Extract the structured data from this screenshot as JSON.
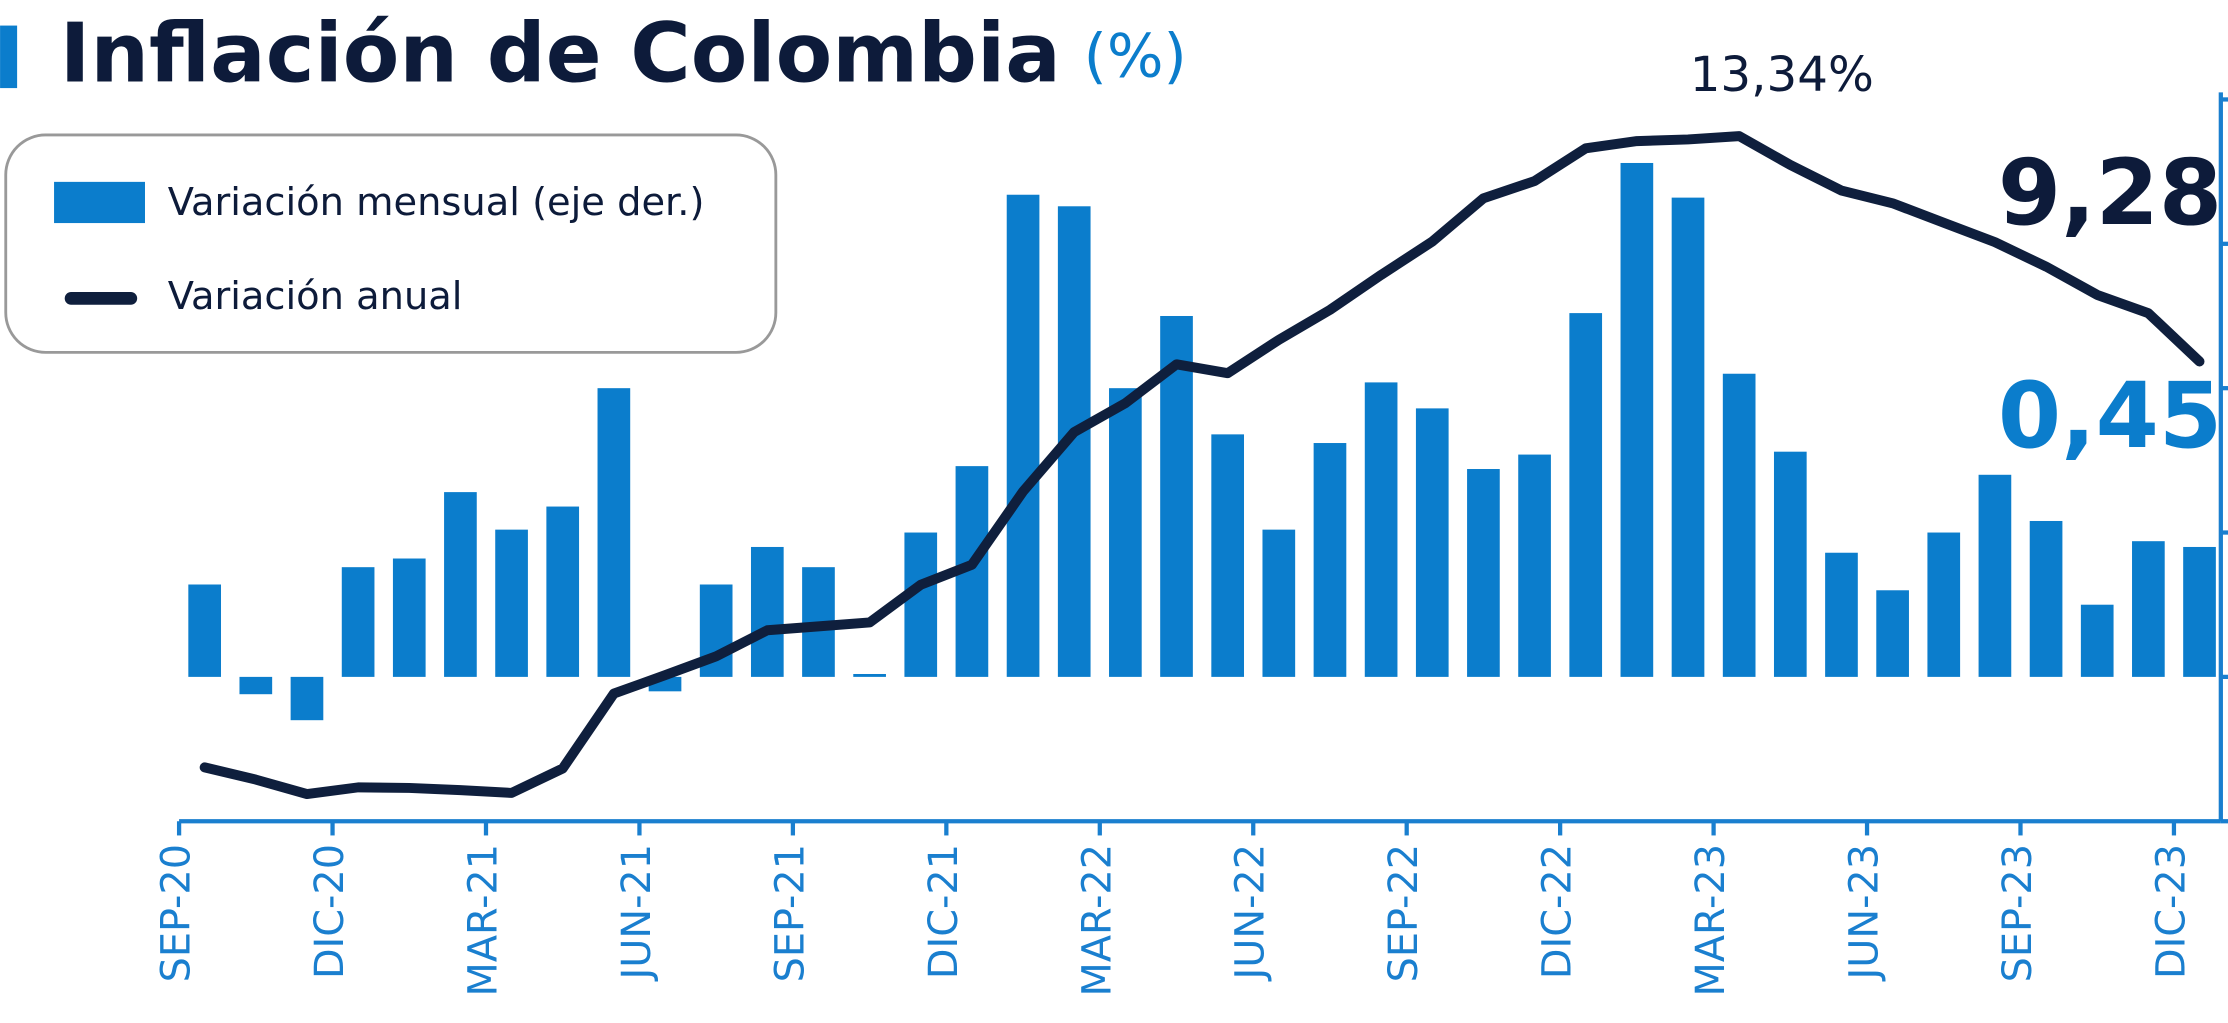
{
  "chart_data": {
    "type": "bar",
    "title": "Inflación de Colombia",
    "title_unit": "(%)",
    "categories": [
      "SEP-20",
      null,
      null,
      "DIC-20",
      null,
      null,
      "MAR-21",
      null,
      null,
      "JUN-21",
      null,
      null,
      "SEP-21",
      null,
      null,
      "DIC-21",
      null,
      null,
      "MAR-22",
      null,
      null,
      "JUN-22",
      null,
      null,
      "SEP-22",
      null,
      null,
      "DIC-22",
      null,
      null,
      "MAR-23",
      null,
      null,
      "JUN-23",
      null,
      null,
      "SEP-23",
      null,
      null,
      "DIC-23"
    ],
    "series": [
      {
        "name": "Variación mensual (eje der.)",
        "type": "bar",
        "axis": "y2",
        "color": "#0b7dcc",
        "values": [
          0.32,
          -0.06,
          -0.15,
          0.38,
          0.41,
          0.64,
          0.51,
          0.59,
          1.0,
          -0.05,
          0.32,
          0.45,
          0.38,
          0.01,
          0.5,
          0.73,
          1.67,
          1.63,
          1.0,
          1.25,
          0.84,
          0.51,
          0.81,
          1.02,
          0.93,
          0.72,
          0.77,
          1.26,
          1.78,
          1.66,
          1.05,
          0.78,
          0.43,
          0.3,
          0.5,
          0.7,
          0.54,
          0.25,
          0.47,
          0.45
        ]
      },
      {
        "name": "Variación anual",
        "type": "line",
        "axis": "y",
        "color": "#0f1f3d",
        "values": [
          1.97,
          1.75,
          1.49,
          1.61,
          1.6,
          1.56,
          1.51,
          1.95,
          3.3,
          3.63,
          3.97,
          4.44,
          4.51,
          4.58,
          5.26,
          5.62,
          6.94,
          8.01,
          8.53,
          9.23,
          9.07,
          9.67,
          10.21,
          10.84,
          11.44,
          12.22,
          12.53,
          13.12,
          13.25,
          13.28,
          13.34,
          12.82,
          12.36,
          12.13,
          11.78,
          11.43,
          10.99,
          10.48,
          10.15,
          9.28
        ]
      }
    ],
    "ylim": [
      1,
      14
    ],
    "y2lim": [
      -0.5,
      2
    ],
    "y2ticks": [
      -0.5,
      0,
      0.5,
      1,
      1.5,
      2
    ],
    "annotations": [
      "13,34%",
      "9,28",
      "0,45"
    ]
  }
}
